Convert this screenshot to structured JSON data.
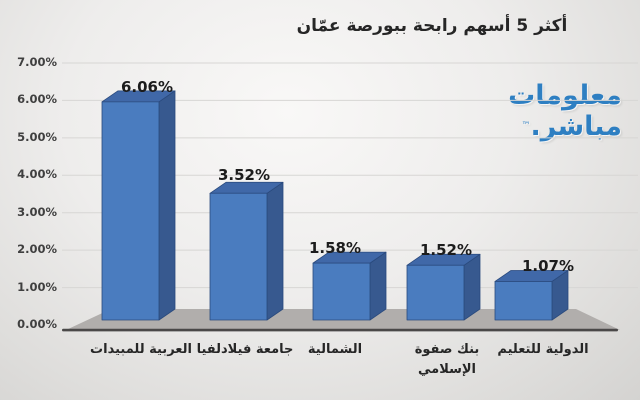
{
  "title": "أكثر 5 أسهم رابحة ببورصة عمّان",
  "watermark": {
    "line1": "معلومات",
    "line2": "مباشر.",
    "tm": "™"
  },
  "chart_data": {
    "type": "bar",
    "style": "3d-column",
    "title": "أكثر 5 أسهم رابحة ببورصة عمّان",
    "categories": [
      "العربية للمبيدات",
      "جامعة فيلادلفيا",
      "الشمالية",
      "بنك صفوة الإسلامي",
      "الدولية للتعليم"
    ],
    "values": [
      6.06,
      3.52,
      1.58,
      1.52,
      1.07
    ],
    "value_labels": [
      "6.06%",
      "3.52%",
      "1.58%",
      "1.52%",
      "1.07%"
    ],
    "y_ticks": [
      "7.00%",
      "6.00%",
      "5.00%",
      "4.00%",
      "3.00%",
      "2.00%",
      "1.00%",
      "0.00%"
    ],
    "ylim": [
      0,
      7
    ],
    "ytick_step": 1,
    "xlabel": "",
    "ylabel": "",
    "grid": true,
    "legend": false,
    "watermark_text": "معلومات مباشر",
    "colors": {
      "bar_front": "#4a7cbf",
      "bar_top": "#4068a8",
      "bar_side": "#37598f",
      "bar_border": "#2a4a7d",
      "floor": "#b1aeac",
      "axis_line": "#4a4848",
      "gridline": "#d7d6d4",
      "watermark_blue": "#2e7fc2",
      "text": "#262626"
    }
  }
}
